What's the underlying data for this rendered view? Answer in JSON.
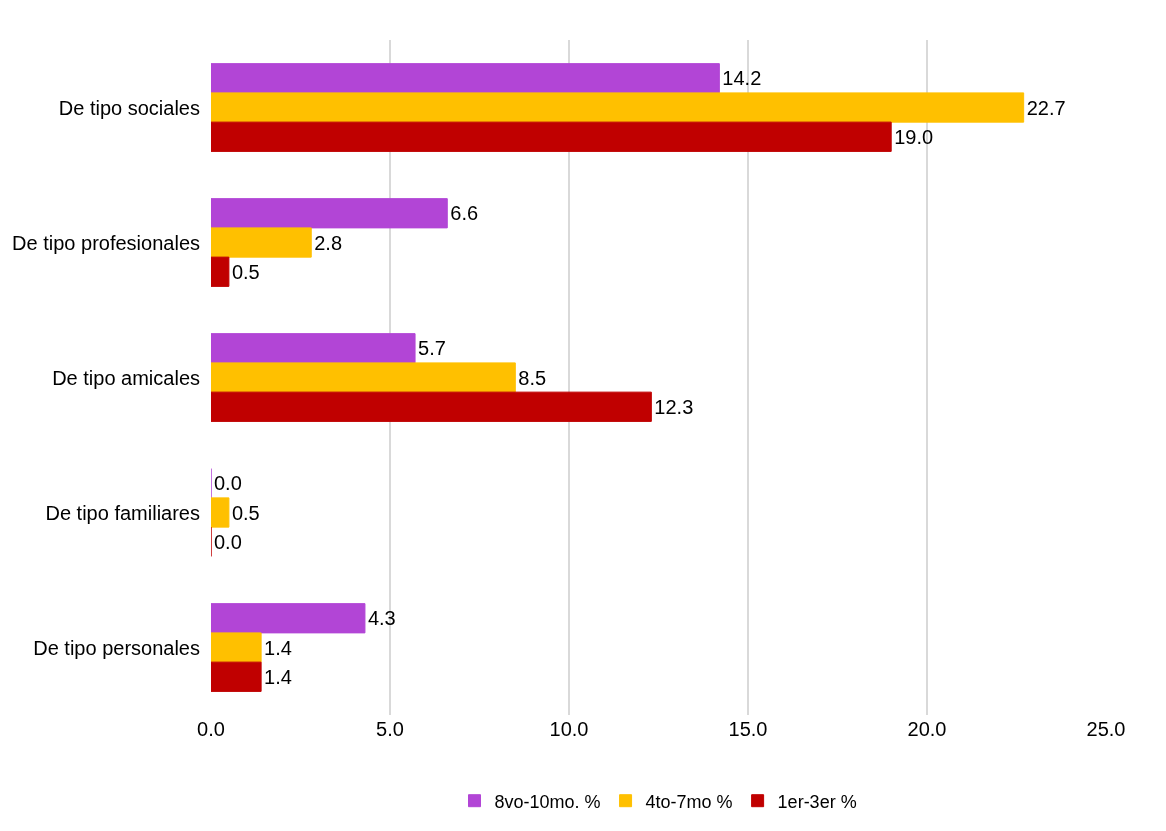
{
  "chart_data": {
    "type": "bar",
    "orientation": "horizontal",
    "categories": [
      "De tipo sociales",
      "De tipo profesionales",
      "De tipo amicales",
      "De tipo familiares",
      "De tipo personales"
    ],
    "series": [
      {
        "name": "8vo-10mo. %",
        "color": "#b245d6",
        "values": [
          14.2,
          6.6,
          5.7,
          0.0,
          4.3
        ],
        "value_labels": [
          "14.2",
          "6.6",
          "5.7",
          "0.0",
          "4.3"
        ]
      },
      {
        "name": "4to-7mo %",
        "color": "#ffc000",
        "values": [
          22.7,
          2.8,
          8.5,
          0.5,
          1.4
        ],
        "value_labels": [
          "22.7",
          "2.8",
          "8.5",
          "0.5",
          "1.4"
        ]
      },
      {
        "name": "1er-3er %",
        "color": "#c00000",
        "values": [
          19.0,
          0.5,
          12.3,
          0.0,
          1.4
        ],
        "value_labels": [
          "19.0",
          "0.5",
          "12.3",
          "0.0",
          "1.4"
        ]
      }
    ],
    "xlim": [
      0,
      25
    ],
    "xticks": [
      {
        "value": 0,
        "label": "0.0"
      },
      {
        "value": 5,
        "label": "5.0"
      },
      {
        "value": 10,
        "label": "10.0"
      },
      {
        "value": 15,
        "label": "15.0"
      },
      {
        "value": 20,
        "label": "20.0"
      },
      {
        "value": 25,
        "label": "25.0"
      }
    ],
    "grid": "x",
    "legend": "bottom"
  }
}
